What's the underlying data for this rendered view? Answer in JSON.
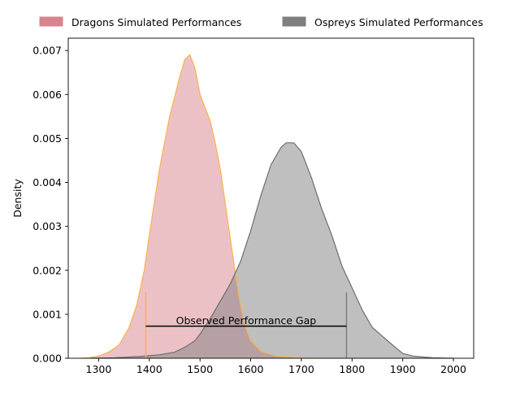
{
  "chart_data": {
    "type": "area",
    "title": "",
    "xlabel": "",
    "ylabel": "Density",
    "xlim": [
      1240,
      2040
    ],
    "ylim": [
      0,
      0.00728
    ],
    "x_ticks": [
      1300,
      1400,
      1500,
      1600,
      1700,
      1800,
      1900,
      2000
    ],
    "y_ticks": [
      0.0,
      0.001,
      0.002,
      0.003,
      0.004,
      0.005,
      0.006,
      0.007
    ],
    "y_tick_labels": [
      "0.000",
      "0.001",
      "0.002",
      "0.003",
      "0.004",
      "0.005",
      "0.006",
      "0.007"
    ],
    "grid": false,
    "legend_placement": "top, outside plot",
    "series": [
      {
        "name": "Dragons Simulated Performances",
        "fill_color": "#d9838e",
        "line_color": "#ffb04a",
        "fill_opacity": 0.5,
        "points": [
          [
            1265,
            0.0
          ],
          [
            1280,
            1e-05
          ],
          [
            1300,
            5e-05
          ],
          [
            1320,
            0.00014
          ],
          [
            1340,
            0.0003
          ],
          [
            1360,
            0.0007
          ],
          [
            1375,
            0.0012
          ],
          [
            1390,
            0.002
          ],
          [
            1400,
            0.0028
          ],
          [
            1420,
            0.0043
          ],
          [
            1440,
            0.0055
          ],
          [
            1460,
            0.0064
          ],
          [
            1470,
            0.0068
          ],
          [
            1480,
            0.0069
          ],
          [
            1490,
            0.0066
          ],
          [
            1500,
            0.006
          ],
          [
            1520,
            0.0054
          ],
          [
            1530,
            0.0049
          ],
          [
            1540,
            0.0043
          ],
          [
            1550,
            0.0035
          ],
          [
            1560,
            0.0027
          ],
          [
            1570,
            0.0019
          ],
          [
            1580,
            0.0012
          ],
          [
            1590,
            0.0007
          ],
          [
            1600,
            0.0004
          ],
          [
            1620,
            0.00016
          ],
          [
            1650,
            5e-05
          ],
          [
            1700,
            1e-05
          ],
          [
            1720,
            0.0
          ]
        ]
      },
      {
        "name": "Ospreys Simulated Performances",
        "fill_color": "#7f7f7f",
        "line_color": "#6e6e6e",
        "fill_opacity": 0.5,
        "points": [
          [
            1285,
            0.0
          ],
          [
            1330,
            1e-05
          ],
          [
            1380,
            4e-05
          ],
          [
            1420,
            8e-05
          ],
          [
            1450,
            0.00014
          ],
          [
            1470,
            0.00025
          ],
          [
            1490,
            0.0004
          ],
          [
            1500,
            0.00055
          ],
          [
            1520,
            0.0009
          ],
          [
            1540,
            0.0013
          ],
          [
            1560,
            0.0017
          ],
          [
            1580,
            0.0022
          ],
          [
            1600,
            0.0029
          ],
          [
            1620,
            0.0037
          ],
          [
            1640,
            0.0044
          ],
          [
            1660,
            0.0048
          ],
          [
            1670,
            0.0049
          ],
          [
            1685,
            0.0049
          ],
          [
            1700,
            0.0047
          ],
          [
            1720,
            0.0041
          ],
          [
            1740,
            0.0034
          ],
          [
            1760,
            0.0028
          ],
          [
            1780,
            0.0021
          ],
          [
            1800,
            0.0016
          ],
          [
            1820,
            0.0011
          ],
          [
            1840,
            0.0007
          ],
          [
            1860,
            0.0005
          ],
          [
            1880,
            0.0003
          ],
          [
            1900,
            0.00011
          ],
          [
            1920,
            5e-05
          ],
          [
            1940,
            3e-05
          ],
          [
            1960,
            1e-05
          ],
          [
            2000,
            0.0
          ]
        ]
      }
    ],
    "markers": [
      {
        "x": 1393,
        "ymax": 0.0015,
        "color": "#ffb04a"
      },
      {
        "x": 1789,
        "ymax": 0.0015,
        "color": "#7f7f7f"
      }
    ],
    "gap_line": {
      "x_start": 1393,
      "x_end": 1789,
      "y": 0.00073,
      "color": "#000000"
    },
    "annotation": {
      "text": "Observed Performance Gap",
      "x": 1591,
      "y": 0.00078
    }
  }
}
